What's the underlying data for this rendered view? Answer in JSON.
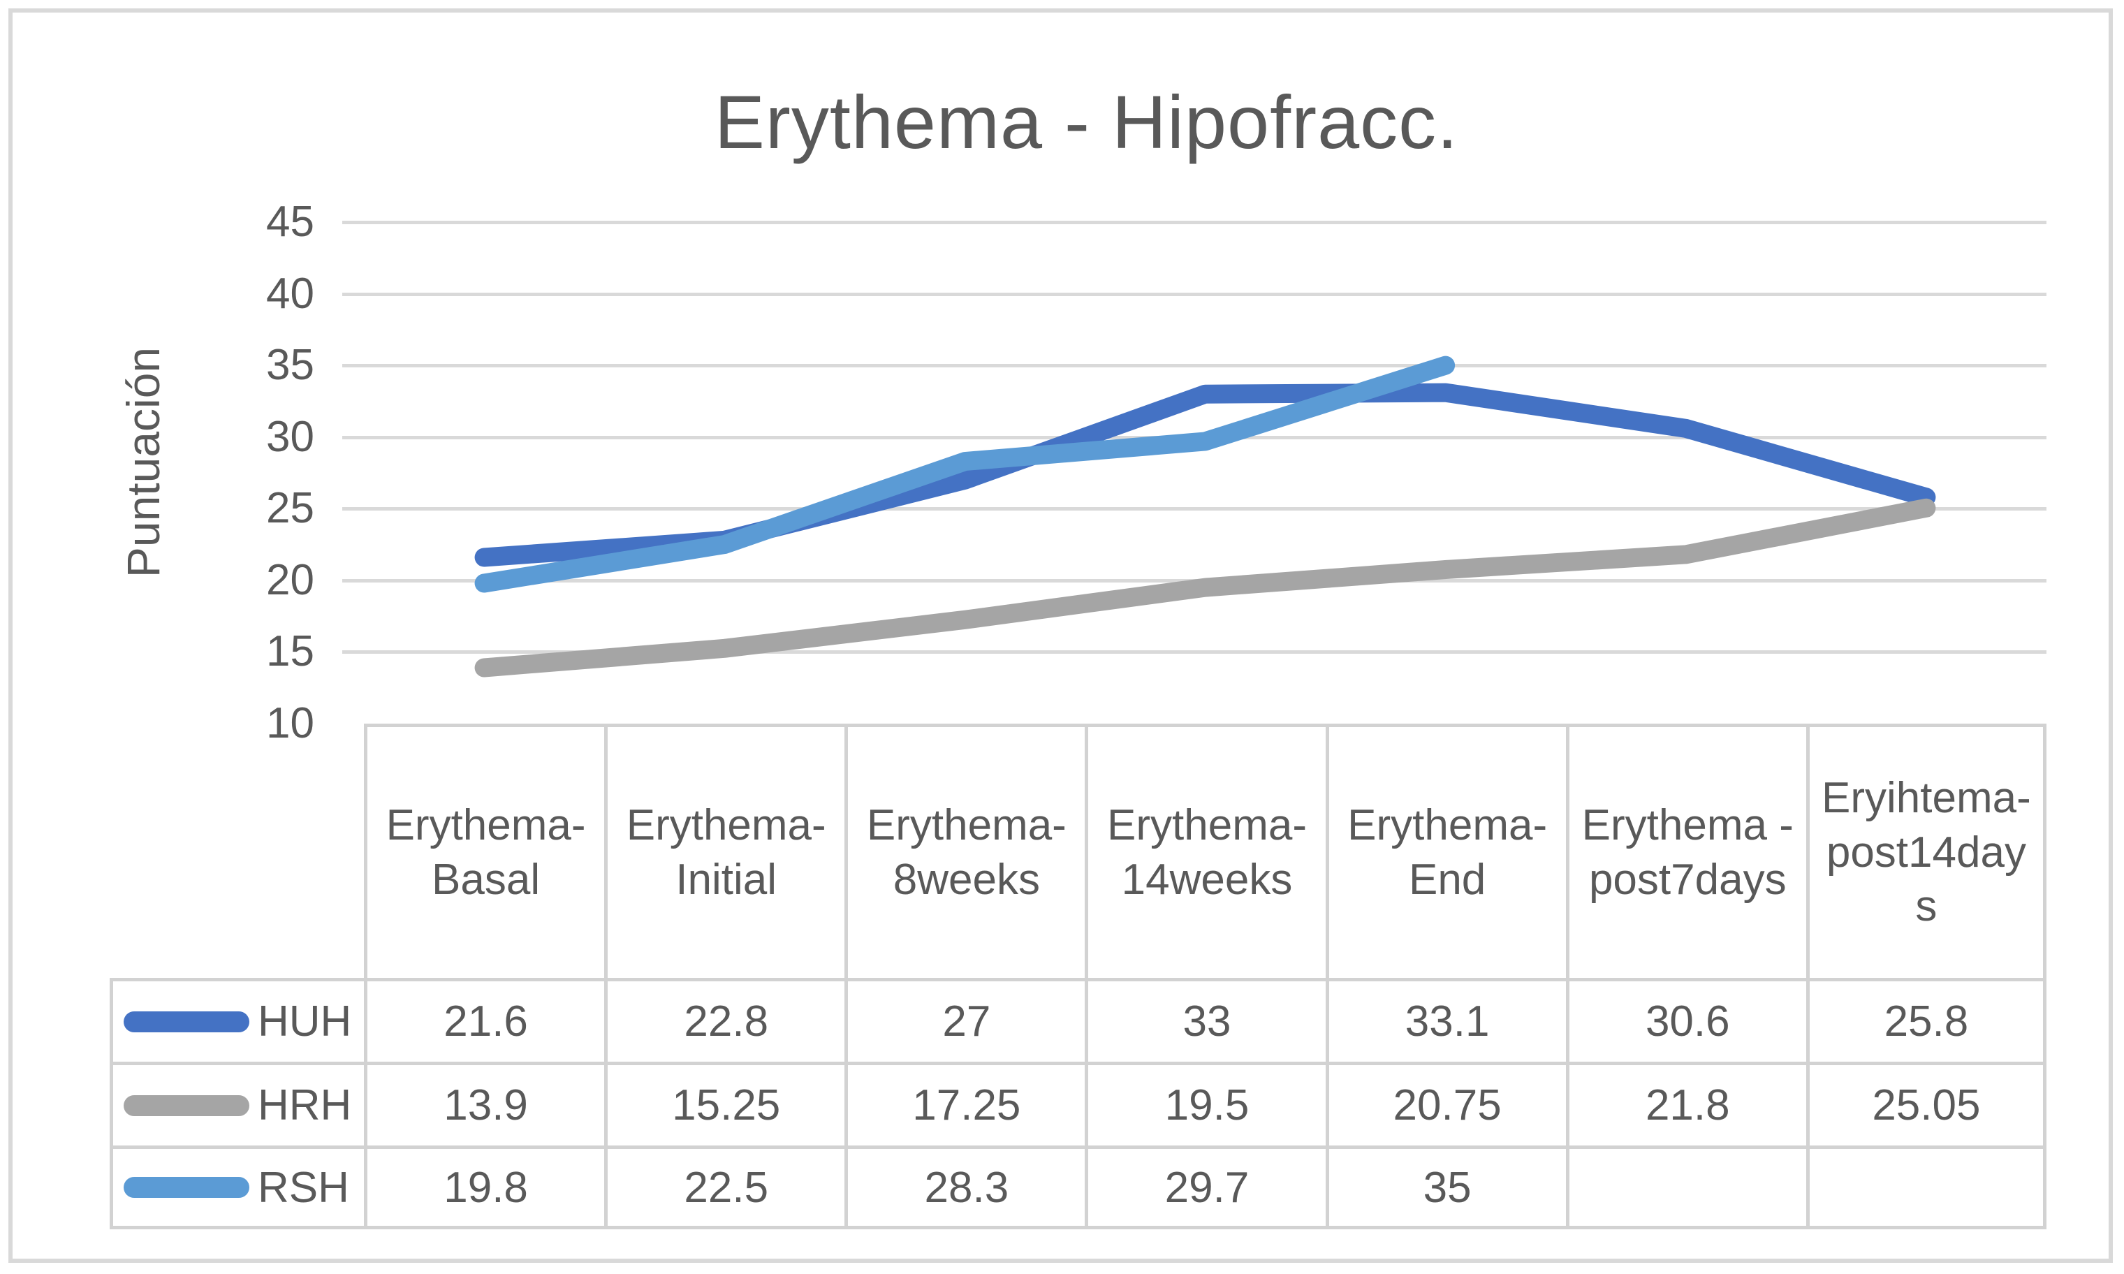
{
  "chart_data": {
    "type": "line",
    "title": "Erythema - Hipofracc.",
    "ylabel": "Puntuación",
    "xlabel": "",
    "categories": [
      "Erythema-Basal",
      "Erythema-Initial",
      "Erythema-8weeks",
      "Erythema-14weeks",
      "Erythema-End",
      "Erythema - post7days",
      "Eryihtema-post14days"
    ],
    "series": [
      {
        "name": "HUH",
        "color": "#4472C4",
        "values": [
          21.6,
          22.8,
          27,
          33,
          33.1,
          30.6,
          25.8
        ]
      },
      {
        "name": "HRH",
        "color": "#A5A5A5",
        "values": [
          13.9,
          15.25,
          17.25,
          19.5,
          20.75,
          21.8,
          25.05
        ]
      },
      {
        "name": "RSH",
        "color": "#5B9BD5",
        "values": [
          19.8,
          22.5,
          28.3,
          29.7,
          35,
          null,
          null
        ]
      }
    ],
    "ylim": [
      10,
      45
    ],
    "yticks": [
      45,
      40,
      35,
      30,
      25,
      20,
      15,
      10
    ],
    "grid": true,
    "line_width": 27,
    "legend_position": "data-table-left-column",
    "data_table_shown": true
  },
  "styles": {
    "text_color": "#595959",
    "grid_color": "#D9D9D9",
    "table_border_color": "#D2D2D2",
    "frame_border_color": "#D9D9D9",
    "background": "#FFFFFF"
  }
}
